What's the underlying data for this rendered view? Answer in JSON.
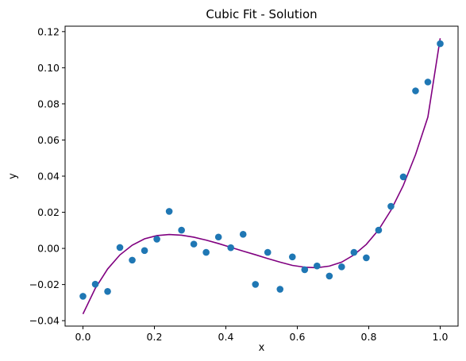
{
  "chart_data": {
    "type": "scatter",
    "title": "Cubic Fit - Solution",
    "xlabel": "x",
    "ylabel": "y",
    "xlim": [
      -0.05,
      1.05
    ],
    "ylim": [
      -0.043,
      0.123
    ],
    "xticks": [
      0.0,
      0.2,
      0.4,
      0.6,
      0.8,
      1.0
    ],
    "xtick_labels": [
      "0.0",
      "0.2",
      "0.4",
      "0.6",
      "0.8",
      "1.0"
    ],
    "yticks": [
      -0.04,
      -0.02,
      0.0,
      0.02,
      0.04,
      0.06,
      0.08,
      0.1,
      0.12
    ],
    "ytick_labels": [
      "−0.04",
      "−0.02",
      "0.00",
      "0.02",
      "0.04",
      "0.06",
      "0.08",
      "0.10",
      "0.12"
    ],
    "grid": false,
    "colors": {
      "points": "#1f77b4",
      "fit_line": "#800080"
    },
    "series": [
      {
        "kind": "scatter",
        "x": [
          0.0,
          0.0345,
          0.069,
          0.1034,
          0.1379,
          0.1724,
          0.2069,
          0.2414,
          0.2759,
          0.3103,
          0.3448,
          0.3793,
          0.4138,
          0.4483,
          0.4828,
          0.5172,
          0.5517,
          0.5862,
          0.6207,
          0.6552,
          0.6897,
          0.7241,
          0.7586,
          0.7931,
          0.8276,
          0.8621,
          0.8966,
          0.931,
          0.9655,
          1.0
        ],
        "y": [
          -0.0265,
          -0.0198,
          -0.0238,
          0.0005,
          -0.0065,
          -0.0012,
          0.0051,
          0.0205,
          0.0101,
          0.0024,
          -0.0022,
          0.0063,
          0.0004,
          0.0078,
          -0.0199,
          -0.0022,
          -0.0226,
          -0.0047,
          -0.0118,
          -0.0097,
          -0.0153,
          -0.0102,
          -0.0022,
          -0.0052,
          0.0101,
          0.0233,
          0.0396,
          0.0872,
          0.0921,
          0.1133
        ]
      },
      {
        "kind": "line",
        "x": [
          0.0,
          0.0345,
          0.069,
          0.1034,
          0.1379,
          0.1724,
          0.2069,
          0.2414,
          0.2759,
          0.3103,
          0.3448,
          0.3793,
          0.4138,
          0.4483,
          0.4828,
          0.5172,
          0.5517,
          0.5862,
          0.6207,
          0.6552,
          0.6897,
          0.7241,
          0.7586,
          0.7931,
          0.8276,
          0.8621,
          0.8966,
          0.931,
          0.9655,
          1.0
        ],
        "y": [
          -0.0363,
          -0.0221,
          -0.0114,
          -0.0036,
          0.0018,
          0.0053,
          0.0071,
          0.0077,
          0.0073,
          0.0062,
          0.0046,
          0.0027,
          0.0006,
          -0.0015,
          -0.0035,
          -0.0056,
          -0.0076,
          -0.0094,
          -0.0104,
          -0.0107,
          -0.0098,
          -0.0076,
          -0.0036,
          0.0022,
          0.0103,
          0.0211,
          0.0348,
          0.0519,
          0.0727,
          0.1163
        ]
      }
    ]
  }
}
